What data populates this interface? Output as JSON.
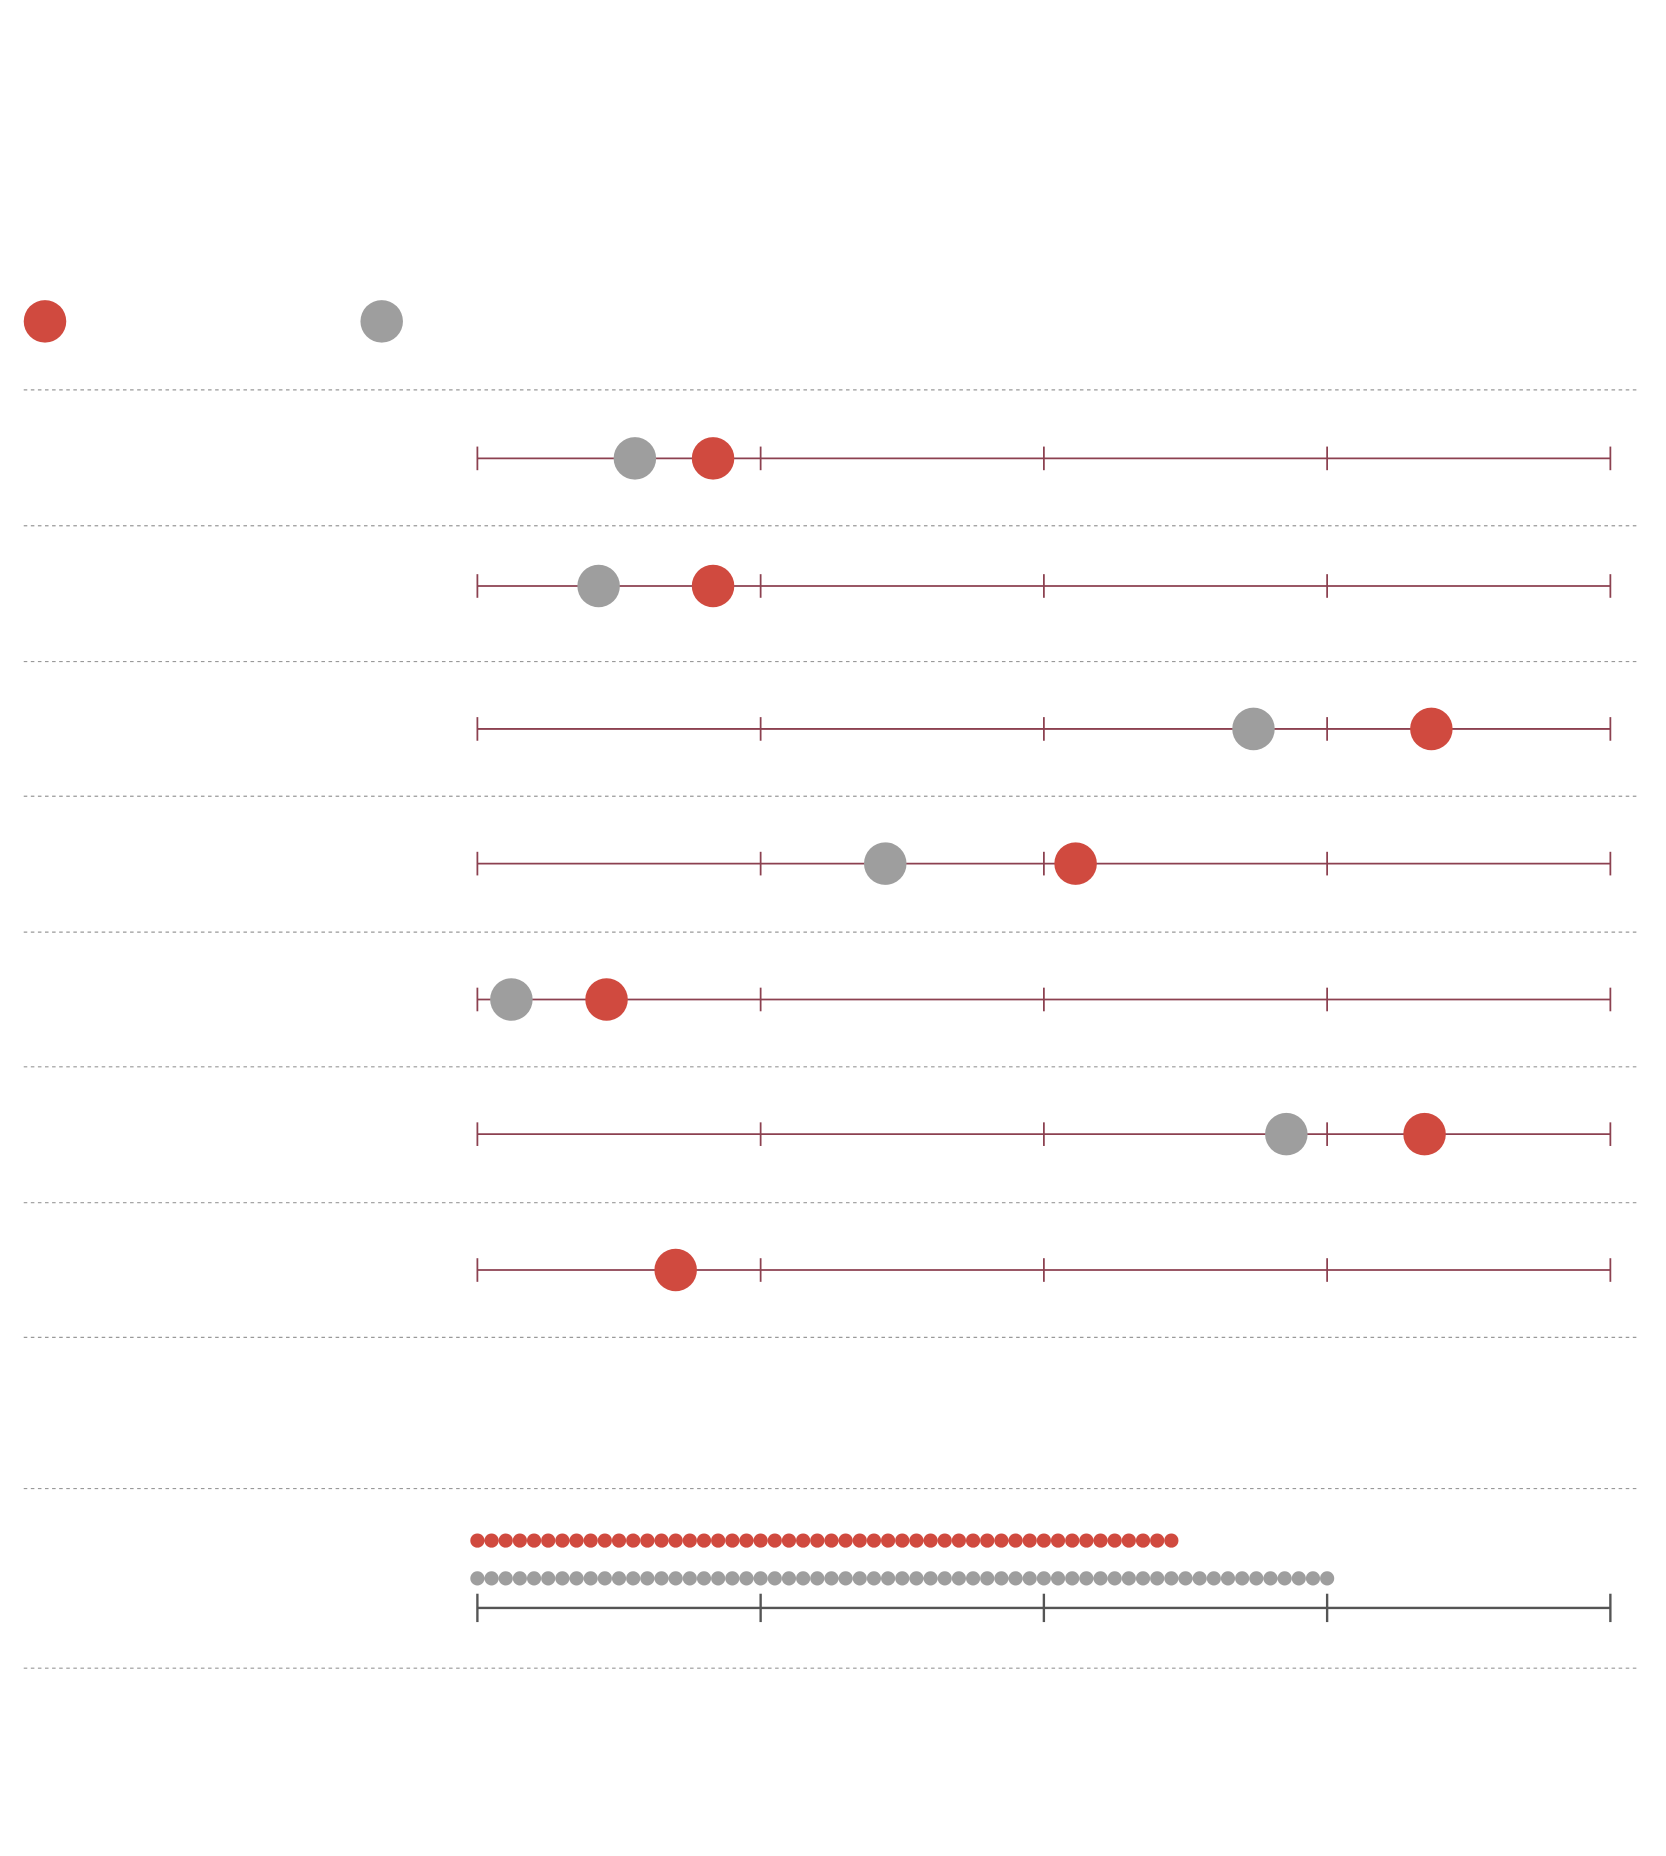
{
  "chart_data": [
    {
      "type": "dot",
      "series": [
        {
          "color": "#d04a3f",
          "values": [
            20.8,
            20.8,
            84.2,
            52.8,
            11.4,
            83.6,
            17.5
          ]
        },
        {
          "color": "#9e9e9e",
          "values": [
            13.9,
            10.7,
            68.5,
            36.0,
            3.0,
            71.4,
            null
          ]
        }
      ],
      "xlim": [
        0,
        100
      ],
      "xticks": [
        0,
        25,
        50,
        75,
        100
      ]
    },
    {
      "type": "unit",
      "series": [
        {
          "color": "#d04a3f",
          "values": [
            50
          ]
        },
        {
          "color": "#9e9e9e",
          "values": [
            61
          ]
        }
      ],
      "xlim": [
        0,
        80
      ],
      "xticks": [
        0,
        20,
        40,
        60,
        80
      ]
    }
  ]
}
